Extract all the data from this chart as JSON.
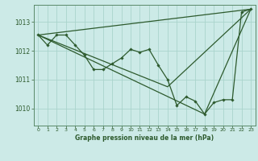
{
  "background_color": "#cceae7",
  "grid_color": "#aad4cc",
  "line_color": "#2d5a2d",
  "marker_color": "#2d5a2d",
  "title": "Graphe pression niveau de la mer (hPa)",
  "xlim": [
    -0.5,
    23.5
  ],
  "ylim": [
    1009.4,
    1013.6
  ],
  "yticks": [
    1010,
    1011,
    1012,
    1013
  ],
  "xticks": [
    0,
    1,
    2,
    3,
    4,
    5,
    6,
    7,
    8,
    9,
    10,
    11,
    12,
    13,
    14,
    15,
    16,
    17,
    18,
    19,
    20,
    21,
    22,
    23
  ],
  "series1_x": [
    0,
    1,
    2,
    3,
    4,
    5,
    6,
    7,
    8,
    9,
    10,
    11,
    12,
    13,
    14,
    15,
    16,
    17,
    18,
    19,
    20,
    21,
    22,
    23
  ],
  "series1_y": [
    1012.55,
    1012.2,
    1012.55,
    1012.55,
    1012.2,
    1011.85,
    1011.35,
    1011.35,
    1011.55,
    1011.75,
    1012.05,
    1011.95,
    1012.05,
    1011.5,
    1011.0,
    1010.1,
    1010.4,
    1010.25,
    1009.8,
    1010.2,
    1010.3,
    1010.3,
    1013.35,
    1013.45
  ],
  "series2_x": [
    0,
    23
  ],
  "series2_y": [
    1012.55,
    1013.45
  ],
  "series3_x": [
    0,
    14,
    23
  ],
  "series3_y": [
    1012.55,
    1010.75,
    1013.45
  ],
  "series4_x": [
    0,
    18,
    23
  ],
  "series4_y": [
    1012.55,
    1009.8,
    1013.45
  ]
}
